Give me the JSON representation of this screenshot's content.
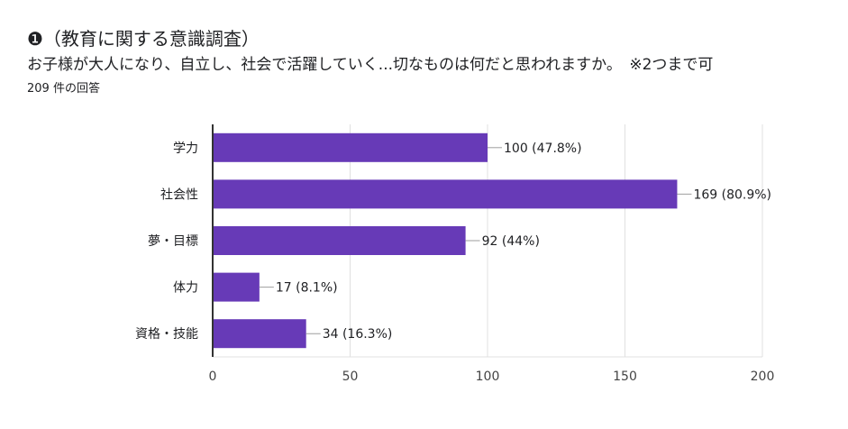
{
  "header": {
    "title": "❶（教育に関する意識調査）",
    "question": "お子様が大人になり、自立し、社会で活躍していく...切なものは何だと思われますか。　※2つまで可",
    "response_count": "209 件の回答"
  },
  "chart_data": {
    "type": "bar",
    "orientation": "horizontal",
    "categories": [
      "学力",
      "社会性",
      "夢・目標",
      "体力",
      "資格・技能"
    ],
    "values": [
      100,
      169,
      92,
      17,
      34
    ],
    "value_labels": [
      "100 (47.8%)",
      "169 (80.9%)",
      "92 (44%)",
      "17 (8.1%)",
      "34 (16.3%)"
    ],
    "xlim": [
      0,
      200
    ],
    "xticks": [
      0,
      50,
      100,
      150,
      200
    ],
    "grid": true,
    "bar_color": "#673ab7"
  }
}
